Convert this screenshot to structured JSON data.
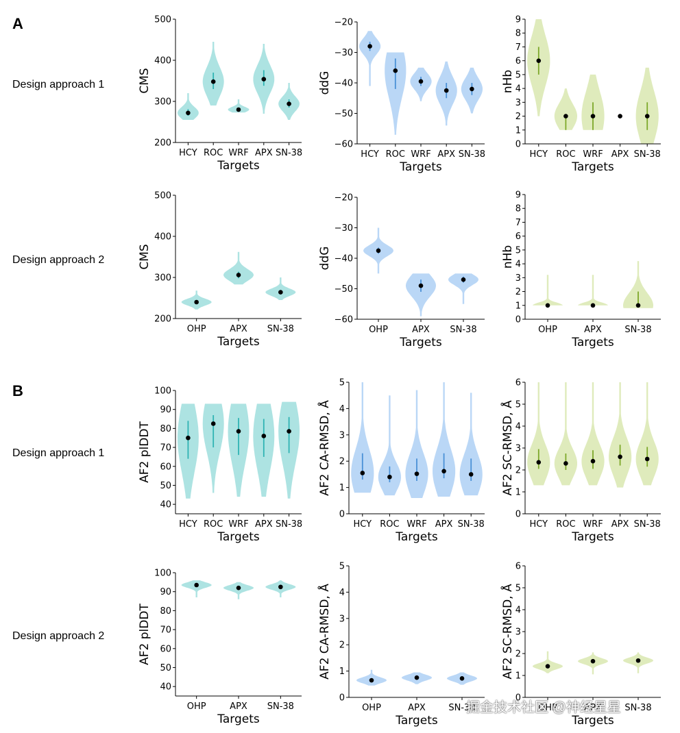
{
  "panels": {
    "A": "A",
    "B": "B"
  },
  "rows": {
    "r1": "Design approach 1",
    "r2": "Design approach 2",
    "r3": "Design approach 1",
    "r4": "Design approach 2"
  },
  "watermark": "掘金技术社区 @神经星星",
  "colors": {
    "teal": "#9fdedd",
    "blue": "#aed0f5",
    "green": "#d9e8b0",
    "teal_line": "#2fb3b3",
    "blue_line": "#4a90d6",
    "green_line": "#7da82a"
  },
  "chart_data": [
    {
      "id": "a1",
      "type": "violin",
      "ylabel": "CMS",
      "xlabel": "Targets",
      "ylim": [
        200,
        500
      ],
      "yticks": [
        200,
        300,
        400,
        500
      ],
      "categories": [
        "HCY",
        "ROC",
        "WRF",
        "APX",
        "SN-38"
      ],
      "median": [
        272,
        348,
        280,
        354,
        294
      ],
      "q1": [
        265,
        330,
        277,
        338,
        285
      ],
      "q3": [
        281,
        370,
        283,
        376,
        305
      ],
      "min": [
        255,
        290,
        273,
        270,
        255
      ],
      "max": [
        320,
        445,
        305,
        440,
        345
      ],
      "color": "teal"
    },
    {
      "id": "a2",
      "type": "violin",
      "ylabel": "ddG",
      "xlabel": "Targets",
      "ylim": [
        -60,
        -20
      ],
      "yticks": [
        -60,
        -50,
        -40,
        -30,
        -20
      ],
      "categories": [
        "HCY",
        "ROC",
        "WRF",
        "APX",
        "SN-38"
      ],
      "median": [
        -28,
        -36,
        -39.5,
        -42.5,
        -42
      ],
      "q1": [
        -29.5,
        -42,
        -41,
        -45,
        -44
      ],
      "q3": [
        -26.5,
        -32,
        -38,
        -40,
        -40
      ],
      "min": [
        -41,
        -57,
        -46,
        -54,
        -50
      ],
      "max": [
        -23,
        -30,
        -35,
        -33,
        -35
      ],
      "color": "blue"
    },
    {
      "id": "a3",
      "type": "violin",
      "ylabel": "nHb",
      "xlabel": "Targets",
      "ylim": [
        0,
        9
      ],
      "yticks": [
        0,
        1,
        2,
        3,
        4,
        5,
        6,
        7,
        8,
        9
      ],
      "categories": [
        "HCY",
        "ROC",
        "WRF",
        "APX",
        "SN-38"
      ],
      "median": [
        6,
        2,
        2,
        2,
        2
      ],
      "q1": [
        5,
        1,
        1,
        2,
        1
      ],
      "q3": [
        7,
        2,
        3,
        2,
        3
      ],
      "min": [
        2,
        1,
        1,
        2,
        0
      ],
      "max": [
        9,
        4,
        5,
        2,
        5.5
      ],
      "color": "green"
    },
    {
      "id": "a4",
      "type": "violin",
      "ylabel": "CMS",
      "xlabel": "Targets",
      "ylim": [
        200,
        500
      ],
      "yticks": [
        200,
        300,
        400,
        500
      ],
      "categories": [
        "OHP",
        "APX",
        "SN-38"
      ],
      "median": [
        240,
        306,
        264
      ],
      "q1": [
        236,
        298,
        259
      ],
      "q3": [
        245,
        314,
        269
      ],
      "min": [
        222,
        283,
        245
      ],
      "max": [
        268,
        362,
        300
      ],
      "color": "teal"
    },
    {
      "id": "a5",
      "type": "violin",
      "ylabel": "ddG",
      "xlabel": "Targets",
      "ylim": [
        -60,
        -20
      ],
      "yticks": [
        -60,
        -50,
        -40,
        -30,
        -20
      ],
      "categories": [
        "OHP",
        "APX",
        "SN-38"
      ],
      "median": [
        -37.5,
        -49,
        -47
      ],
      "q1": [
        -38.5,
        -51,
        -48
      ],
      "q3": [
        -36.5,
        -47,
        -46
      ],
      "min": [
        -45,
        -59,
        -55
      ],
      "max": [
        -30,
        -45,
        -45
      ],
      "color": "blue"
    },
    {
      "id": "a6",
      "type": "violin",
      "ylabel": "nHb",
      "xlabel": "Targets",
      "ylim": [
        0,
        9
      ],
      "yticks": [
        0,
        1,
        2,
        3,
        4,
        5,
        6,
        7,
        8,
        9
      ],
      "categories": [
        "OHP",
        "APX",
        "SN-38"
      ],
      "median": [
        1,
        1,
        1
      ],
      "q1": [
        1,
        1,
        1
      ],
      "q3": [
        1,
        1,
        2
      ],
      "min": [
        1,
        1,
        0.8
      ],
      "max": [
        3.2,
        3.2,
        4.2
      ],
      "color": "green"
    },
    {
      "id": "b1",
      "type": "violin",
      "ylabel": "AF2 plDDT",
      "xlabel": "Targets",
      "ylim": [
        35,
        100
      ],
      "yticks": [
        40,
        50,
        60,
        70,
        80,
        90,
        100
      ],
      "categories": [
        "HCY",
        "ROC",
        "WRF",
        "APX",
        "SN-38"
      ],
      "median": [
        75,
        82.5,
        78.5,
        76,
        78.5
      ],
      "q1": [
        64,
        70,
        66,
        65,
        67
      ],
      "q3": [
        84,
        87,
        85.5,
        85,
        86
      ],
      "min": [
        43,
        46,
        44,
        44,
        43
      ],
      "max": [
        93,
        93,
        93,
        93,
        94
      ],
      "color": "teal"
    },
    {
      "id": "b2",
      "type": "violin",
      "ylabel": "AF2 CA-RMSD, Å",
      "xlabel": "Targets",
      "ylim": [
        0,
        5
      ],
      "yticks": [
        0,
        1,
        2,
        3,
        4,
        5
      ],
      "categories": [
        "HCY",
        "ROC",
        "WRF",
        "APX",
        "SN-38"
      ],
      "median": [
        1.55,
        1.4,
        1.52,
        1.62,
        1.5
      ],
      "q1": [
        1.3,
        1.2,
        1.25,
        1.35,
        1.25
      ],
      "q3": [
        2.3,
        1.8,
        2.1,
        2.3,
        2.1
      ],
      "min": [
        0.8,
        0.7,
        0.6,
        0.65,
        0.7
      ],
      "max": [
        5,
        4.5,
        4.7,
        5,
        4.6
      ],
      "color": "blue"
    },
    {
      "id": "b3",
      "type": "violin",
      "ylabel": "AF2 SC-RMSD, Å",
      "xlabel": "Targets",
      "ylim": [
        0,
        6
      ],
      "yticks": [
        0,
        1,
        2,
        3,
        4,
        5,
        6
      ],
      "categories": [
        "HCY",
        "ROC",
        "WRF",
        "APX",
        "SN-38"
      ],
      "median": [
        2.35,
        2.3,
        2.4,
        2.6,
        2.5
      ],
      "q1": [
        2.05,
        2.0,
        2.05,
        2.2,
        2.15
      ],
      "q3": [
        2.95,
        2.75,
        2.9,
        3.15,
        3.05
      ],
      "min": [
        1.3,
        1.3,
        1.3,
        1.2,
        1.3
      ],
      "max": [
        6,
        6,
        6,
        6,
        6
      ],
      "color": "green"
    },
    {
      "id": "b4",
      "type": "violin",
      "ylabel": "AF2 plDDT",
      "xlabel": "Targets",
      "ylim": [
        35,
        100
      ],
      "yticks": [
        40,
        50,
        60,
        70,
        80,
        90,
        100
      ],
      "categories": [
        "OHP",
        "APX",
        "SN-38"
      ],
      "median": [
        93.5,
        92,
        92.5
      ],
      "q1": [
        93,
        91.5,
        92
      ],
      "q3": [
        94,
        92.5,
        93
      ],
      "min": [
        87,
        86,
        87
      ],
      "max": [
        96,
        95,
        96
      ],
      "color": "teal"
    },
    {
      "id": "b5",
      "type": "violin",
      "ylabel": "AF2 CA-RMSD, Å",
      "xlabel": "Targets",
      "ylim": [
        0,
        5
      ],
      "yticks": [
        0,
        1,
        2,
        3,
        4,
        5
      ],
      "categories": [
        "OHP",
        "APX",
        "SN-38"
      ],
      "median": [
        0.65,
        0.75,
        0.72
      ],
      "q1": [
        0.6,
        0.7,
        0.67
      ],
      "q3": [
        0.7,
        0.8,
        0.77
      ],
      "min": [
        0.45,
        0.5,
        0.48
      ],
      "max": [
        1.05,
        0.95,
        0.95
      ],
      "color": "blue"
    },
    {
      "id": "b6",
      "type": "violin",
      "ylabel": "AF2 SC-RMSD, Å",
      "xlabel": "Targets",
      "ylim": [
        0,
        6
      ],
      "yticks": [
        0,
        1,
        2,
        3,
        4,
        5,
        6
      ],
      "categories": [
        "OHP",
        "APX",
        "SN-38"
      ],
      "median": [
        1.42,
        1.65,
        1.68
      ],
      "q1": [
        1.37,
        1.58,
        1.6
      ],
      "q3": [
        1.47,
        1.72,
        1.75
      ],
      "min": [
        1.1,
        1.05,
        1.1
      ],
      "max": [
        2.1,
        2.05,
        2.05
      ],
      "color": "green"
    }
  ]
}
